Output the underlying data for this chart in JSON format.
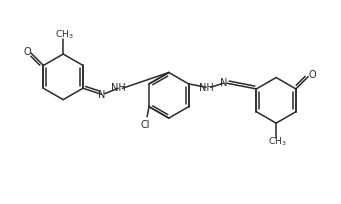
{
  "bg_color": "#ffffff",
  "line_color": "#2a2a2a",
  "line_width": 1.1,
  "font_size": 7.0,
  "figsize": [
    3.41,
    2.04
  ],
  "dpi": 100,
  "xlim": [
    0,
    10
  ],
  "ylim": [
    0,
    6
  ]
}
